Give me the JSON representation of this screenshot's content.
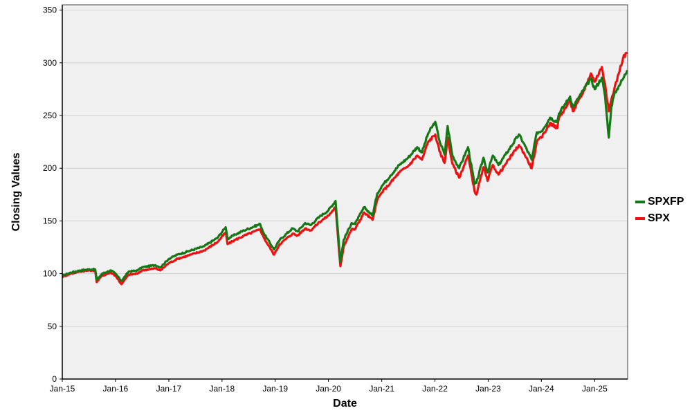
{
  "chart_data": {
    "type": "line",
    "title": "",
    "xlabel": "Date",
    "ylabel": "Closing Values",
    "xlim": [
      "2015-01-01",
      "2025-08-15"
    ],
    "ylim": [
      0,
      355
    ],
    "yticks": [
      0,
      50,
      100,
      150,
      200,
      250,
      300,
      350
    ],
    "xticks": [
      "Jan-15",
      "Jan-16",
      "Jan-17",
      "Jan-18",
      "Jan-19",
      "Jan-20",
      "Jan-21",
      "Jan-22",
      "Jan-23",
      "Jan-24",
      "Jan-25"
    ],
    "grid": "horizontal",
    "background": "#f0f0f0",
    "legend_position": "right",
    "series": [
      {
        "name": "SPXFP",
        "color": "#147814",
        "x": [
          "2015-01-01",
          "2015-03-01",
          "2015-05-01",
          "2015-07-01",
          "2015-08-15",
          "2015-08-25",
          "2015-10-01",
          "2015-12-01",
          "2016-01-01",
          "2016-02-11",
          "2016-04-01",
          "2016-06-01",
          "2016-07-01",
          "2016-10-01",
          "2016-11-04",
          "2017-01-01",
          "2017-03-01",
          "2017-06-01",
          "2017-09-01",
          "2017-12-01",
          "2018-01-26",
          "2018-02-08",
          "2018-04-01",
          "2018-06-01",
          "2018-09-20",
          "2018-10-15",
          "2018-12-24",
          "2019-02-01",
          "2019-04-30",
          "2019-06-03",
          "2019-07-26",
          "2019-09-01",
          "2019-11-01",
          "2020-01-01",
          "2020-02-19",
          "2020-03-23",
          "2020-04-15",
          "2020-06-08",
          "2020-07-01",
          "2020-09-02",
          "2020-10-30",
          "2020-12-01",
          "2021-01-01",
          "2021-03-01",
          "2021-05-01",
          "2021-07-01",
          "2021-09-01",
          "2021-10-04",
          "2021-11-15",
          "2022-01-03",
          "2022-02-01",
          "2022-03-08",
          "2022-03-29",
          "2022-05-01",
          "2022-06-16",
          "2022-08-16",
          "2022-09-30",
          "2022-10-12",
          "2022-11-30",
          "2022-12-28",
          "2023-02-02",
          "2023-03-13",
          "2023-05-01",
          "2023-07-31",
          "2023-09-01",
          "2023-10-27",
          "2023-12-01",
          "2024-01-01",
          "2024-03-01",
          "2024-04-19",
          "2024-05-01",
          "2024-07-16",
          "2024-08-05",
          "2024-10-01",
          "2024-12-06",
          "2025-01-01",
          "2025-02-19",
          "2025-03-13",
          "2025-04-08",
          "2025-04-25",
          "2025-05-15",
          "2025-06-15",
          "2025-07-15",
          "2025-08-12"
        ],
        "values": [
          98,
          101,
          103,
          104,
          104,
          94,
          100,
          103,
          100,
          93,
          102,
          103,
          106,
          108,
          106,
          114,
          118,
          122,
          126,
          134,
          144,
          133,
          137,
          141,
          147,
          138,
          123,
          132,
          143,
          140,
          148,
          146,
          154,
          160,
          169,
          111,
          132,
          148,
          147,
          163,
          155,
          176,
          183,
          193,
          203,
          210,
          220,
          215,
          233,
          244,
          226,
          213,
          240,
          212,
          200,
          220,
          185,
          186,
          210,
          196,
          212,
          203,
          213,
          232,
          224,
          208,
          234,
          235,
          248,
          244,
          252,
          268,
          258,
          271,
          285,
          275,
          286,
          268,
          229,
          258,
          270,
          278,
          285,
          293
        ]
      },
      {
        "name": "SPX",
        "color": "#ee1111",
        "x": [
          "2015-01-01",
          "2015-03-01",
          "2015-05-01",
          "2015-07-01",
          "2015-08-15",
          "2015-08-25",
          "2015-10-01",
          "2015-12-01",
          "2016-01-01",
          "2016-02-11",
          "2016-04-01",
          "2016-06-01",
          "2016-07-01",
          "2016-10-01",
          "2016-11-04",
          "2017-01-01",
          "2017-03-01",
          "2017-06-01",
          "2017-09-01",
          "2017-12-01",
          "2018-01-26",
          "2018-02-08",
          "2018-04-01",
          "2018-06-01",
          "2018-09-20",
          "2018-10-15",
          "2018-12-24",
          "2019-02-01",
          "2019-04-30",
          "2019-06-03",
          "2019-07-26",
          "2019-09-01",
          "2019-11-01",
          "2020-01-01",
          "2020-02-19",
          "2020-03-23",
          "2020-04-15",
          "2020-06-08",
          "2020-07-01",
          "2020-09-02",
          "2020-10-30",
          "2020-12-01",
          "2021-01-01",
          "2021-03-01",
          "2021-05-01",
          "2021-07-01",
          "2021-09-01",
          "2021-10-04",
          "2021-11-15",
          "2022-01-03",
          "2022-02-01",
          "2022-03-08",
          "2022-03-29",
          "2022-05-01",
          "2022-06-16",
          "2022-08-16",
          "2022-09-30",
          "2022-10-12",
          "2022-11-30",
          "2022-12-28",
          "2023-02-02",
          "2023-03-13",
          "2023-05-01",
          "2023-07-31",
          "2023-09-01",
          "2023-10-27",
          "2023-12-01",
          "2024-01-01",
          "2024-03-01",
          "2024-04-19",
          "2024-05-01",
          "2024-07-16",
          "2024-08-05",
          "2024-10-01",
          "2024-12-06",
          "2025-01-01",
          "2025-02-19",
          "2025-03-13",
          "2025-04-08",
          "2025-04-25",
          "2025-05-15",
          "2025-06-15",
          "2025-07-15",
          "2025-08-12"
        ],
        "values": [
          97,
          100,
          102,
          103,
          103,
          92,
          98,
          101,
          98,
          90,
          99,
          100,
          103,
          105,
          103,
          110,
          114,
          118,
          122,
          130,
          139,
          128,
          132,
          136,
          142,
          134,
          118,
          128,
          138,
          136,
          143,
          141,
          149,
          155,
          163,
          107,
          126,
          142,
          142,
          158,
          151,
          170,
          177,
          186,
          196,
          202,
          212,
          208,
          225,
          232,
          216,
          205,
          229,
          204,
          191,
          212,
          178,
          175,
          201,
          188,
          203,
          194,
          204,
          222,
          215,
          200,
          225,
          229,
          243,
          238,
          248,
          264,
          254,
          268,
          290,
          282,
          296,
          280,
          254,
          265,
          275,
          290,
          305,
          310
        ]
      }
    ]
  }
}
